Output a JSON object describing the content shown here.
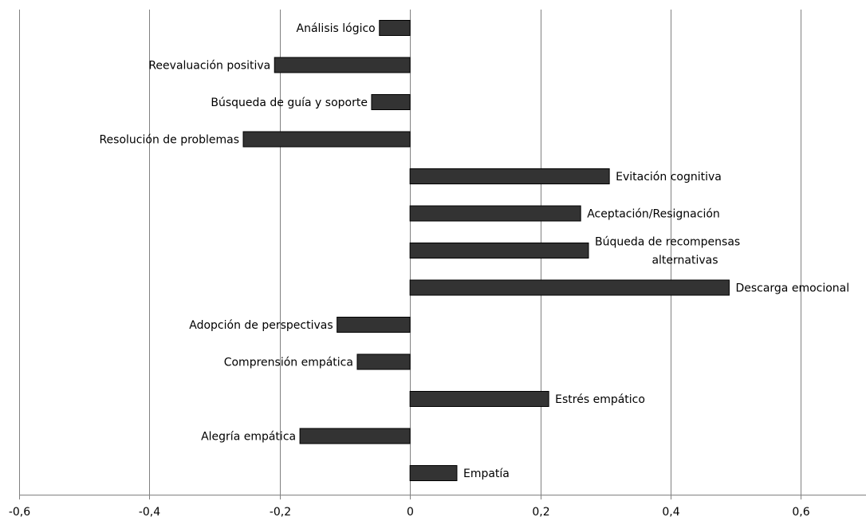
{
  "chart_data": {
    "type": "bar",
    "orientation": "horizontal",
    "title": "",
    "xlabel": "",
    "ylabel": "",
    "xlim": [
      -0.6,
      0.7
    ],
    "xticks": [
      -0.6,
      -0.4,
      -0.2,
      0,
      0.2,
      0.4,
      0.6
    ],
    "tick_labels": [
      "-0,6",
      "-0,4",
      "-0,2",
      "0",
      "0,2",
      "0,4",
      "0,6"
    ],
    "grid": true,
    "legend": "none",
    "categories": [
      "Análisis lógico",
      "Reevaluación positiva",
      "Búsqueda de guía y soporte",
      "Resolución de problemas",
      "Evitación cognitiva",
      "Aceptación/Resignación",
      [
        "Búqueda de recompensas",
        "alternativas"
      ],
      "Descarga emocional",
      "Adopción de perspectivas",
      "Comprensión empática",
      "Estrés empático",
      "Alegría empática",
      "Empatía"
    ],
    "values": [
      -0.047,
      -0.208,
      -0.059,
      -0.256,
      0.306,
      0.262,
      0.274,
      0.49,
      -0.112,
      -0.081,
      0.213,
      -0.169,
      0.072
    ],
    "colors": {
      "bar_fill": "#333333",
      "bar_stroke": "#000000",
      "grid": "#808080",
      "axis": "#808080"
    }
  }
}
